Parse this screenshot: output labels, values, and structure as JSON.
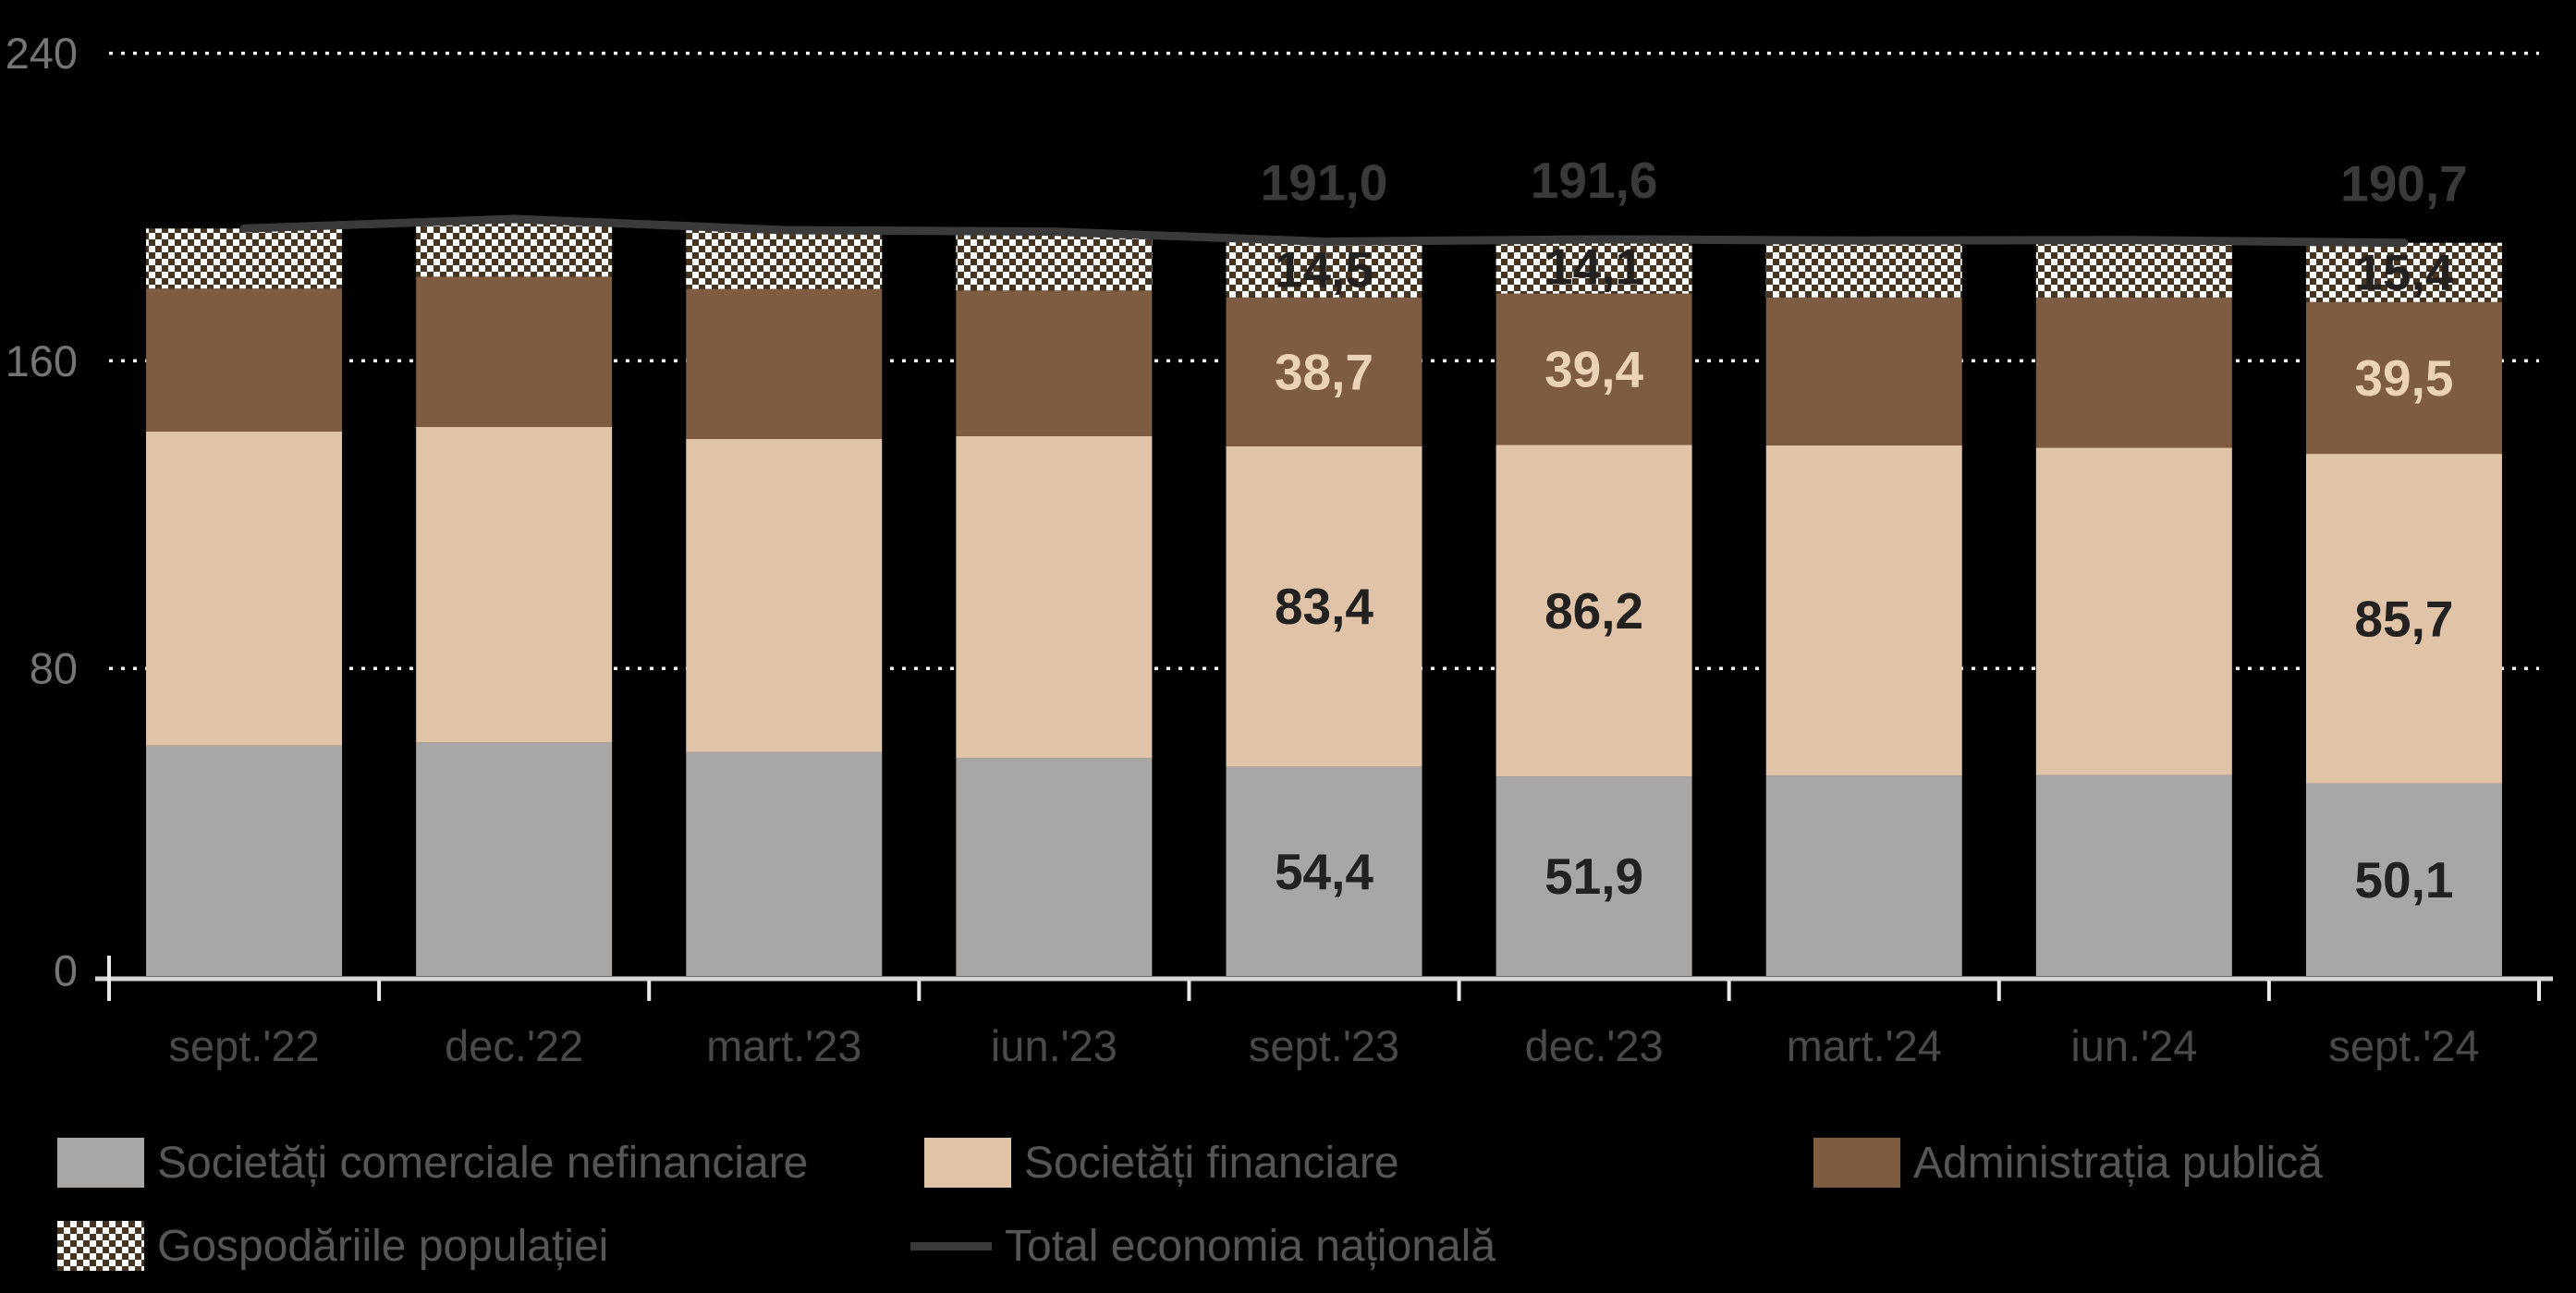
{
  "background_color": "#000000",
  "chart_data": {
    "type": "bar",
    "subtype": "stacked-bar-with-total-line",
    "title": "",
    "categories": [
      "sept.'22",
      "dec.'22",
      "mart.'23",
      "iun.'23",
      "sept.'23",
      "dec.'23",
      "mart.'24",
      "iun.'24",
      "sept.'24"
    ],
    "series": [
      {
        "name": "Societăți comerciale nefinanciare",
        "color": "#a8a7a5",
        "label_color": "#222120",
        "values": [
          59.9,
          60.8,
          58.3,
          56.7,
          54.4,
          51.9,
          52.1,
          52.3,
          50.1
        ]
      },
      {
        "name": "Societăți financiare",
        "color": "#e1c4a8",
        "label_color": "#222120",
        "values": [
          81.7,
          82.0,
          81.4,
          83.7,
          83.4,
          86.2,
          85.9,
          85.1,
          85.7
        ]
      },
      {
        "name": "Administrația publică",
        "color": "#7e5c41",
        "label_color": "#ecd2b6",
        "values": [
          37.2,
          39.1,
          39.0,
          37.9,
          38.7,
          39.4,
          38.5,
          39.1,
          39.5
        ]
      },
      {
        "name": "Gospodăriile populației",
        "pattern": "checker",
        "pattern_colors": [
          "#ffffff",
          "#463423"
        ],
        "label_color": "#222120",
        "values": [
          15.6,
          15.0,
          15.3,
          15.3,
          14.5,
          14.1,
          14.8,
          14.9,
          15.4
        ]
      }
    ],
    "line_series": {
      "name": "Total economia națională",
      "color": "#3a3a3a",
      "values": [
        194.4,
        196.9,
        194.0,
        193.6,
        191.0,
        191.6,
        191.3,
        191.4,
        190.7
      ]
    },
    "data_labels": {
      "labeled_category_indices": [
        4,
        5,
        8
      ],
      "segments": {
        "4": [
          "54,4",
          "83,4",
          "38,7",
          "14,5"
        ],
        "5": [
          "51,9",
          "86,2",
          "39,4",
          "14,1"
        ],
        "8": [
          "50,1",
          "85,7",
          "39,5",
          "15,4"
        ]
      },
      "totals": {
        "4": "191,0",
        "5": "191,6",
        "8": "190,7"
      },
      "total_label_color": "#3a3a3a"
    },
    "estimated_category_indices": [
      0,
      1,
      2,
      3,
      6,
      7
    ],
    "y_axis": {
      "tick_labels": [
        "0",
        "80",
        "160",
        "240"
      ],
      "tick_values": [
        0,
        80,
        160,
        240
      ],
      "gridline_values": [
        80,
        160,
        240
      ],
      "max": 240,
      "label_color": "#757575",
      "gridline_color": "#f5f5f5"
    },
    "x_axis": {
      "label_color": "#4a4a4a",
      "axis_color": "#d6d6d6",
      "tick_color": "#eaeaea"
    },
    "grid": "dotted horizontal",
    "legend_position": "bottom-left, two rows"
  }
}
